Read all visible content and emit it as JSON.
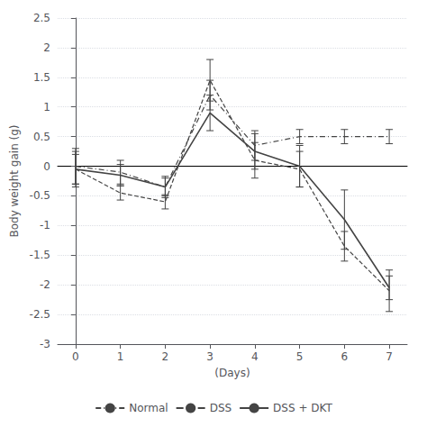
{
  "chart_data": {
    "type": "line",
    "x": [
      0,
      1,
      2,
      3,
      4,
      5,
      6,
      7
    ],
    "series": [
      {
        "name": "Normal",
        "color": "#444444",
        "line_style": "dashdot",
        "values": [
          0.0,
          -0.1,
          -0.35,
          1.2,
          0.35,
          0.5,
          0.5,
          0.5
        ],
        "yerr": [
          0.3,
          0.2,
          0.18,
          0.25,
          0.25,
          0.12,
          0.12,
          0.12
        ]
      },
      {
        "name": "DSS",
        "color": "#444444",
        "line_style": "dashed",
        "values": [
          -0.05,
          -0.45,
          -0.6,
          1.45,
          0.1,
          -0.05,
          -1.35,
          -2.1
        ],
        "yerr": [
          0.3,
          0.12,
          0.12,
          0.35,
          0.3,
          0.3,
          0.25,
          0.35
        ]
      },
      {
        "name": "DSS + DKT",
        "color": "#444444",
        "line_style": "solid",
        "values": [
          -0.05,
          -0.15,
          -0.35,
          0.9,
          0.25,
          0.0,
          -0.9,
          -2.05
        ],
        "yerr": [
          0.25,
          0.18,
          0.15,
          0.3,
          0.3,
          0.35,
          0.5,
          0.2
        ]
      }
    ],
    "xlim": [
      -0.4,
      7.4
    ],
    "xticks": [
      0,
      1,
      2,
      3,
      4,
      5,
      6,
      7
    ],
    "ylim": [
      -3.0,
      2.5
    ],
    "yticks": [
      -3,
      -2.5,
      -2,
      -1.5,
      -1,
      -0.5,
      0,
      0.5,
      1,
      1.5,
      2,
      2.5
    ],
    "xlabel": "(Days)",
    "ylabel": "Body weight gain (g)",
    "grid": true,
    "legend": "bottom"
  }
}
